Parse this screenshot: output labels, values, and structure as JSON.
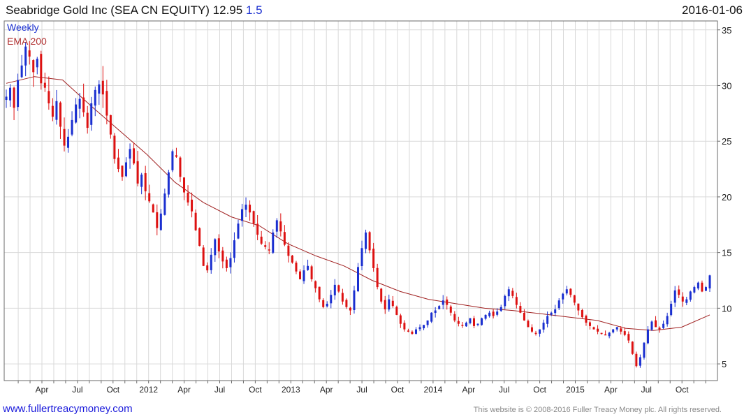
{
  "header": {
    "title": "Seabridge Gold Inc (SEA CN EQUITY) 12.95",
    "change": "1.5",
    "date": "2016-01-06"
  },
  "legend": {
    "weekly": "Weekly",
    "ema": "EMA 200"
  },
  "footer": {
    "link": "www.fullertreacymoney.com",
    "copyright": "This website is © 2008-2016 Fuller Treacy Money plc. All rights reserved."
  },
  "colors": {
    "up": "#1a2fd0",
    "down": "#dd1111",
    "ema": "#a02020",
    "grid": "#d9d9d9",
    "border": "#6a6a6a"
  },
  "chart_data": {
    "type": "candlestick",
    "frequency": "weekly",
    "x_labels": [
      "Apr",
      "Jul",
      "Oct",
      "2012",
      "Apr",
      "Jul",
      "Oct",
      "2013",
      "Apr",
      "Jul",
      "Oct",
      "2014",
      "Apr",
      "Jul",
      "Oct",
      "2015",
      "Apr",
      "Jul",
      "Oct"
    ],
    "y_ticks": [
      5,
      10,
      15,
      20,
      25,
      30,
      35
    ],
    "ylim": [
      3.5,
      35.8
    ],
    "y_axis_side": "right",
    "grid": true,
    "close_series": [
      29.0,
      29.8,
      28.0,
      30.5,
      31.8,
      33.5,
      32.6,
      31.2,
      32.4,
      30.2,
      29.8,
      28.4,
      27.2,
      28.6,
      26.3,
      24.6,
      25.4,
      26.9,
      28.3,
      28.8,
      27.6,
      26.2,
      28.4,
      29.6,
      30.1,
      29.2,
      27.3,
      25.6,
      23.4,
      22.5,
      21.8,
      23.1,
      24.3,
      23.0,
      21.2,
      22.0,
      20.5,
      19.6,
      18.6,
      17.2,
      18.5,
      20.3,
      22.2,
      24.1,
      23.6,
      21.8,
      20.4,
      19.5,
      18.7,
      17.0,
      15.6,
      13.8,
      13.4,
      14.8,
      16.2,
      15.1,
      14.2,
      13.6,
      14.5,
      16.1,
      17.6,
      18.9,
      19.3,
      18.6,
      17.6,
      16.6,
      15.8,
      15.5,
      15.2,
      16.8,
      17.9,
      16.9,
      15.7,
      14.7,
      14.1,
      13.3,
      12.6,
      13.4,
      13.8,
      12.6,
      11.8,
      10.8,
      10.1,
      10.4,
      11.2,
      12.1,
      11.5,
      10.6,
      10.1,
      9.8,
      11.6,
      13.7,
      15.4,
      16.8,
      15.2,
      13.6,
      11.9,
      10.6,
      9.9,
      10.8,
      10.2,
      9.4,
      8.6,
      8.1,
      7.9,
      7.7,
      8.1,
      8.3,
      8.5,
      8.9,
      9.6,
      9.8,
      10.2,
      10.7,
      10.3,
      9.6,
      8.9,
      8.6,
      8.5,
      8.7,
      9.1,
      8.4,
      8.6,
      9.1,
      9.4,
      9.6,
      9.3,
      9.7,
      10.1,
      11.1,
      11.7,
      11.1,
      10.3,
      9.6,
      8.9,
      8.3,
      7.9,
      7.7,
      8.1,
      8.7,
      9.3,
      9.6,
      9.9,
      10.7,
      11.3,
      11.7,
      11.2,
      10.5,
      9.8,
      9.2,
      8.7,
      8.4,
      8.1,
      7.9,
      7.7,
      7.6,
      7.8,
      8.1,
      8.3,
      7.9,
      7.6,
      7.1,
      5.9,
      4.8,
      5.6,
      6.9,
      8.1,
      8.8,
      8.3,
      8.1,
      8.6,
      9.3,
      10.4,
      11.6,
      11.2,
      10.6,
      10.8,
      11.5,
      11.9,
      12.3,
      11.5,
      11.9,
      12.95
    ],
    "ema_series": [
      30.2,
      30.8,
      30.5,
      28.2,
      26.0,
      23.8,
      21.3,
      19.5,
      18.2,
      17.4,
      15.8,
      14.7,
      13.8,
      12.5,
      11.5,
      10.8,
      10.4,
      10.0,
      9.8,
      9.5,
      9.2,
      8.9,
      8.2,
      8.0,
      8.3,
      9.4
    ]
  }
}
